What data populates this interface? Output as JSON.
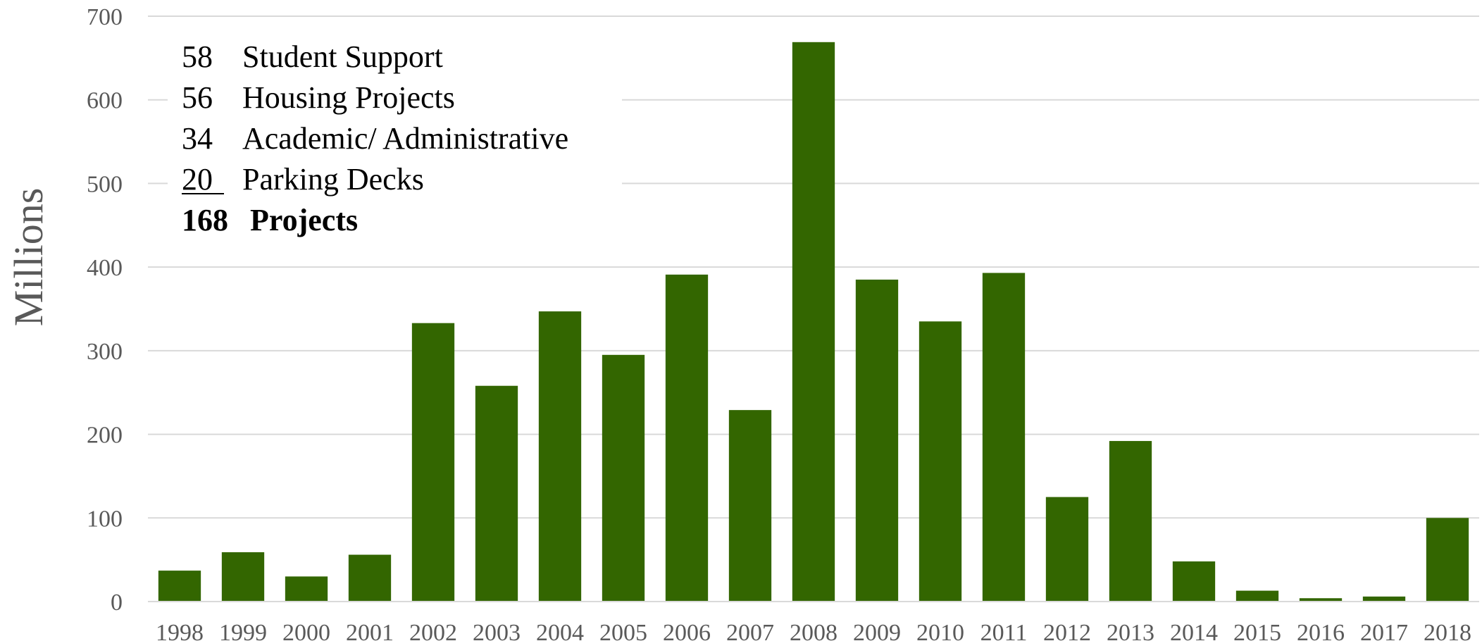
{
  "chart_data": {
    "type": "bar",
    "ylabel": "Millions",
    "xlabel": "",
    "ylim": [
      0,
      700
    ],
    "yticks": [
      0,
      100,
      200,
      300,
      400,
      500,
      600,
      700
    ],
    "grid": true,
    "categories": [
      "1998",
      "1999",
      "2000",
      "2001",
      "2002",
      "2003",
      "2004",
      "2005",
      "2006",
      "2007",
      "2008",
      "2009",
      "2010",
      "2011",
      "2012",
      "2013",
      "2014",
      "2015",
      "2016",
      "2017",
      "2018"
    ],
    "values": [
      37,
      59,
      30,
      56,
      333,
      258,
      347,
      295,
      391,
      229,
      669,
      385,
      335,
      393,
      125,
      192,
      48,
      13,
      4,
      6,
      100
    ],
    "bar_color": "#336600",
    "annotations": [
      {
        "count": "58",
        "label": "Student Support"
      },
      {
        "count": "56",
        "label": "Housing Projects"
      },
      {
        "count": "34",
        "label": "Academic/ Administrative"
      },
      {
        "count": "20",
        "label": "Parking Decks"
      }
    ],
    "total": {
      "count": "168",
      "label": "Projects"
    }
  }
}
